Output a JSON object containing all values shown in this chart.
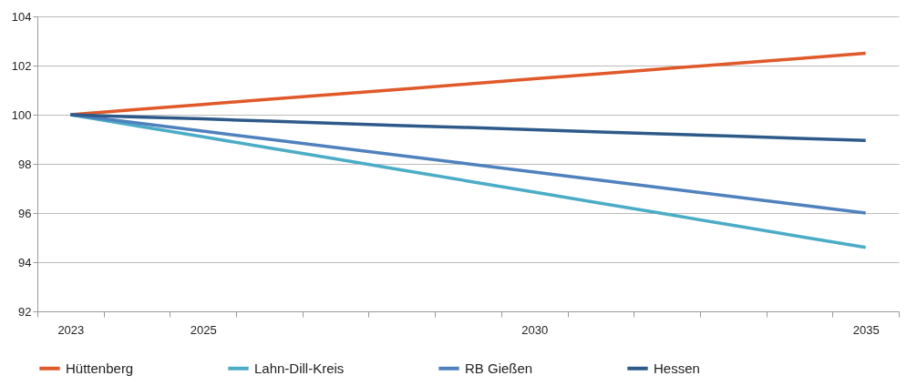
{
  "chart_data": {
    "type": "line",
    "categories": [
      "2023",
      null,
      "2025",
      null,
      null,
      null,
      null,
      "2030",
      null,
      null,
      null,
      null,
      "2035"
    ],
    "series": [
      {
        "name": "Hüttenberg",
        "color": "#e0592a",
        "values": [
          100,
          100.21,
          100.42,
          100.63,
          100.83,
          101.04,
          101.25,
          101.46,
          101.67,
          101.88,
          102.08,
          102.29,
          102.5
        ]
      },
      {
        "name": "Lahn-Dill-Kreis",
        "color": "#4bacc6",
        "values": [
          100,
          99.55,
          99.1,
          98.65,
          98.2,
          97.75,
          97.3,
          96.85,
          96.4,
          95.95,
          95.5,
          95.05,
          94.6
        ]
      },
      {
        "name": "RB Gießen",
        "color": "#4f81bd",
        "values": [
          100,
          99.67,
          99.33,
          99,
          98.67,
          98.33,
          98,
          97.67,
          97.33,
          97,
          96.67,
          96.33,
          96
        ]
      },
      {
        "name": "Hessen",
        "color": "#2e5a8a",
        "values": [
          100,
          99.91,
          99.83,
          99.74,
          99.65,
          99.56,
          99.48,
          99.39,
          99.3,
          99.21,
          99.13,
          99.04,
          98.95
        ]
      }
    ],
    "ylim": [
      92,
      104
    ],
    "yticks": [
      92,
      94,
      96,
      98,
      100,
      102,
      104
    ],
    "grid": "y",
    "legend": "bottom",
    "line_style": "solid",
    "marker": "none"
  }
}
